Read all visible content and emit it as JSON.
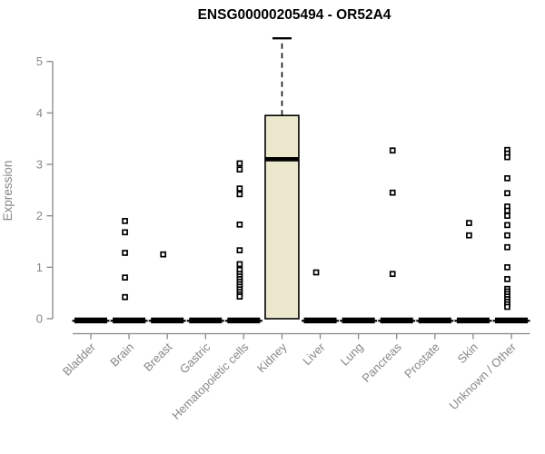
{
  "chart_data": {
    "type": "boxplot",
    "title": "ENSG00000205494 - OR52A4",
    "xlabel": "",
    "ylabel": "Expression",
    "ylim": [
      0,
      5.5
    ],
    "yticks": [
      0,
      1,
      2,
      3,
      4,
      5
    ],
    "grid": false,
    "legend": "none",
    "categories": [
      "Bladder",
      "Brain",
      "Breast",
      "Gastric",
      "Hematopoietic cells",
      "Kidney",
      "Liver",
      "Lung",
      "Pancreas",
      "Prostate",
      "Skin",
      "Unknown / Other"
    ],
    "boxes": [
      {
        "category": "Bladder",
        "q1": 0,
        "median": 0,
        "q3": 0,
        "whisker_low": 0,
        "whisker_high": 0,
        "outliers": []
      },
      {
        "category": "Brain",
        "q1": 0,
        "median": 0,
        "q3": 0,
        "whisker_low": 0,
        "whisker_high": 0,
        "outliers": [
          1.9,
          1.68,
          1.28,
          0.8,
          0.42
        ]
      },
      {
        "category": "Breast",
        "q1": 0,
        "median": 0,
        "q3": 0,
        "whisker_low": 0,
        "whisker_high": 0,
        "outliers": [
          1.25
        ]
      },
      {
        "category": "Gastric",
        "q1": 0,
        "median": 0,
        "q3": 0,
        "whisker_low": 0,
        "whisker_high": 0,
        "outliers": []
      },
      {
        "category": "Hematopoietic cells",
        "q1": 0,
        "median": 0,
        "q3": 0,
        "whisker_low": 0,
        "whisker_high": 0,
        "outliers": [
          3.02,
          2.9,
          2.53,
          2.42,
          1.83,
          1.33,
          1.06,
          0.95,
          0.87,
          0.82,
          0.77,
          0.72,
          0.67,
          0.62,
          0.57,
          0.52,
          0.47,
          0.43
        ]
      },
      {
        "category": "Kidney",
        "q1": 0,
        "median": 3.1,
        "q3": 3.95,
        "whisker_low": 0,
        "whisker_high": 5.45,
        "outliers": []
      },
      {
        "category": "Liver",
        "q1": 0,
        "median": 0,
        "q3": 0,
        "whisker_low": 0,
        "whisker_high": 0,
        "outliers": [
          0.9
        ]
      },
      {
        "category": "Lung",
        "q1": 0,
        "median": 0,
        "q3": 0,
        "whisker_low": 0,
        "whisker_high": 0,
        "outliers": []
      },
      {
        "category": "Pancreas",
        "q1": 0,
        "median": 0,
        "q3": 0,
        "whisker_low": 0,
        "whisker_high": 0,
        "outliers": [
          3.27,
          2.45,
          0.87
        ]
      },
      {
        "category": "Prostate",
        "q1": 0,
        "median": 0,
        "q3": 0,
        "whisker_low": 0,
        "whisker_high": 0,
        "outliers": []
      },
      {
        "category": "Skin",
        "q1": 0,
        "median": 0,
        "q3": 0,
        "whisker_low": 0,
        "whisker_high": 0,
        "outliers": [
          1.86,
          1.62
        ]
      },
      {
        "category": "Unknown / Other",
        "q1": 0,
        "median": 0,
        "q3": 0,
        "whisker_low": 0,
        "whisker_high": 0,
        "outliers": [
          3.28,
          3.21,
          3.14,
          2.73,
          2.44,
          2.18,
          2.1,
          2.0,
          1.82,
          1.62,
          1.39,
          1.0,
          0.77,
          0.58,
          0.53,
          0.48,
          0.43,
          0.38,
          0.33,
          0.28,
          0.23
        ]
      }
    ],
    "colors": {
      "box_fill": "#ece8cd",
      "box_border": "#000000",
      "median": "#000000",
      "whisker": "#000000",
      "outlier_border": "#000000",
      "outlier_fill": "#ffffff",
      "axis": "#878787",
      "title": "#000000",
      "background": "#ffffff"
    }
  }
}
